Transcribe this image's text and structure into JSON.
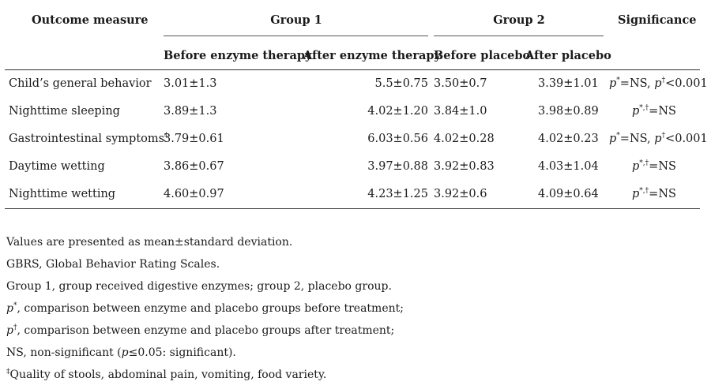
{
  "header": {
    "outcome_measure": "Outcome measure",
    "group1": "Group 1",
    "group2": "Group 2",
    "significance": "Significance",
    "before_enzyme": "Before enzyme therapy",
    "after_enzyme": "After enzyme therapy",
    "before_placebo": "Before placebo",
    "after_placebo": "After placebo"
  },
  "rows": [
    {
      "measure": "Child’s general behavior",
      "measure_sup": "",
      "before_enzyme": "3.01±1.3",
      "after_enzyme": "5.5±0.75",
      "before_placebo": "3.50±0.7",
      "after_placebo": "3.39±1.01",
      "sig": {
        "p1": "p",
        "s1": "*",
        "t1": "=NS, ",
        "p2": "p",
        "s2": "†",
        "t2": "<0.001"
      }
    },
    {
      "measure": "Nighttime sleeping",
      "measure_sup": "",
      "before_enzyme": "3.89±1.3",
      "after_enzyme": "4.02±1.20",
      "before_placebo": "3.84±1.0",
      "after_placebo": "3.98±0.89",
      "sig": {
        "p1": "p",
        "s1": "*,†",
        "t1": "=NS"
      }
    },
    {
      "measure": "Gastrointestinal symptoms",
      "measure_sup": "‡",
      "before_enzyme": "3.79±0.61",
      "after_enzyme": "6.03±0.56",
      "before_placebo": "4.02±0.28",
      "after_placebo": "4.02±0.23",
      "sig": {
        "p1": "p",
        "s1": "*",
        "t1": "=NS, ",
        "p2": "p",
        "s2": "†",
        "t2": "<0.001"
      }
    },
    {
      "measure": "Daytime wetting",
      "measure_sup": "",
      "before_enzyme": "3.86±0.67",
      "after_enzyme": "3.97±0.88",
      "before_placebo": "3.92±0.83",
      "after_placebo": "4.03±1.04",
      "sig": {
        "p1": "p",
        "s1": "*,†",
        "t1": "=NS"
      }
    },
    {
      "measure": "Nighttime wetting",
      "measure_sup": "",
      "before_enzyme": "4.60±0.97",
      "after_enzyme": "4.23±1.25",
      "before_placebo": "3.92±0.6",
      "after_placebo": "4.09±0.64",
      "sig": {
        "p1": "p",
        "s1": "*,†",
        "t1": "=NS"
      }
    }
  ],
  "notes": {
    "n1": "Values are presented as mean±standard deviation.",
    "n2": "GBRS, Global Behavior Rating Scales.",
    "n3": "Group 1, group received digestive enzymes; group 2, placebo group.",
    "n4_p": "p",
    "n4_sup": "*",
    "n4_text": ", comparison between enzyme and placebo groups before treatment;",
    "n5_p": "p",
    "n5_sup": "†",
    "n5_text": ", comparison between enzyme and placebo groups after treatment;",
    "n6_a": "NS, non-significant (",
    "n6_p": "p",
    "n6_b": "≤0.05: significant).",
    "n7_sup": "‡",
    "n7_text": "Quality of stools, abdominal pain, vomiting, food variety."
  }
}
